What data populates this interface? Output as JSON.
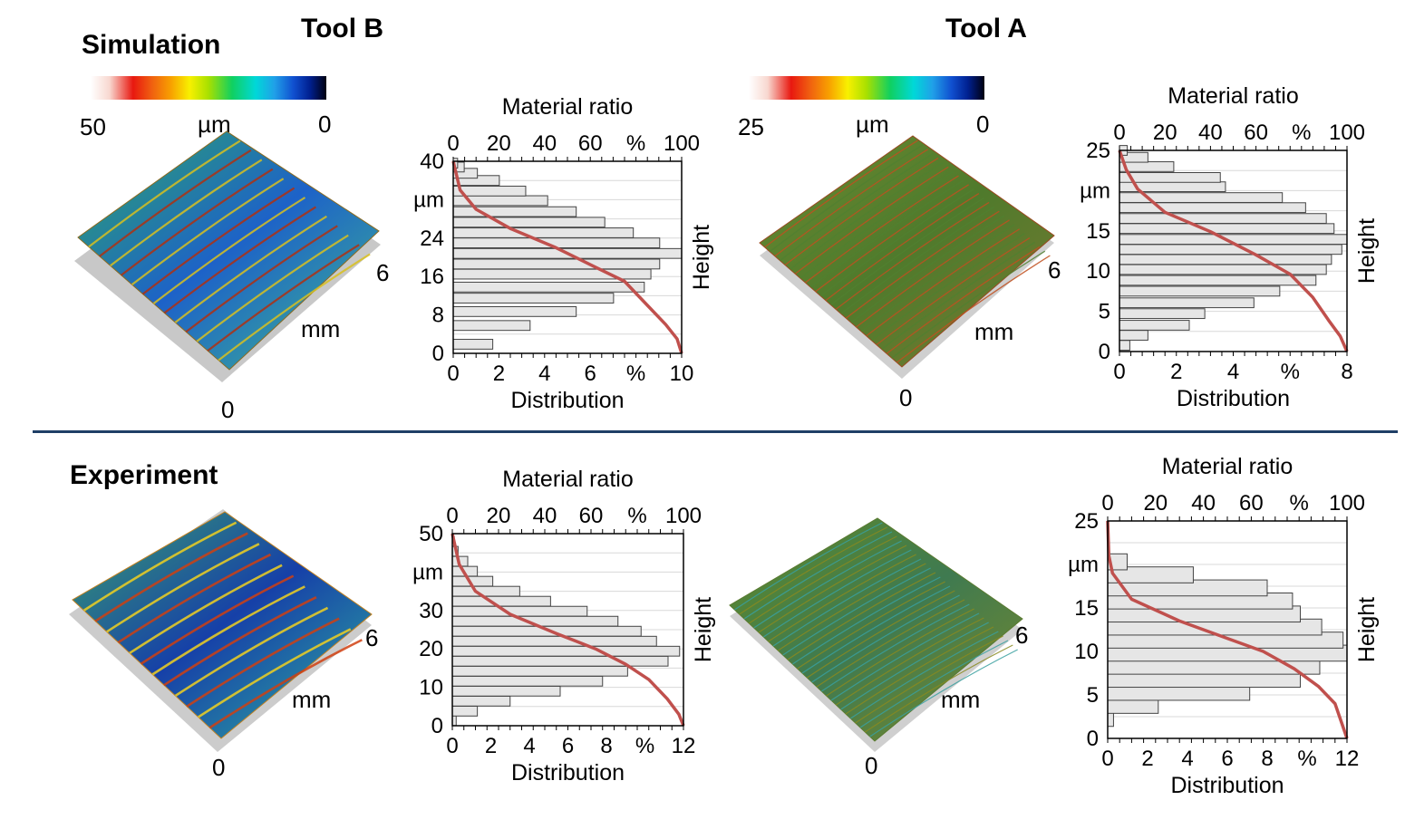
{
  "headers": {
    "tool_b": "Tool B",
    "tool_a": "Tool A",
    "simulation": "Simulation",
    "experiment": "Experiment"
  },
  "colorbars": [
    {
      "min_label": "50",
      "unit": "µm",
      "max_label": "0"
    },
    {
      "min_label": "25",
      "unit": "µm",
      "max_label": "0"
    }
  ],
  "surfaces": [
    {
      "x_end": "6",
      "unit": "mm",
      "origin": "0"
    },
    {
      "x_end": "6",
      "unit": "mm",
      "origin": "0"
    },
    {
      "x_end": "6",
      "unit": "mm",
      "origin": "0"
    },
    {
      "x_end": "6",
      "unit": "mm",
      "origin": "0"
    }
  ],
  "colors": {
    "curve": "#c0504d",
    "bar_fill": "#e6e6e6",
    "bar_stroke": "#444444",
    "separator": "#1f3f66"
  },
  "chart_data": [
    {
      "type": "bar",
      "panel": "simulation-tool-b",
      "top_axis_label": "Material ratio",
      "bottom_axis_label": "Distribution",
      "right_axis_label": "Height",
      "top_ticks": [
        "0",
        "20",
        "40",
        "60",
        "%",
        "100"
      ],
      "bottom_ticks": [
        "0",
        "2",
        "4",
        "6",
        "%",
        "10"
      ],
      "y_ticks": [
        "40",
        "µm",
        "24",
        "16",
        "8",
        "0"
      ],
      "y_range": [
        0,
        40
      ],
      "x_range": [
        0,
        10.4
      ],
      "bins": [
        {
          "y": 0.5,
          "value": 0.0
        },
        {
          "y": 1.9,
          "value": 1.8
        },
        {
          "y": 5.8,
          "value": 3.5
        },
        {
          "y": 8.7,
          "value": 5.6
        },
        {
          "y": 11.5,
          "value": 7.3
        },
        {
          "y": 13.8,
          "value": 8.7
        },
        {
          "y": 16.5,
          "value": 9.0
        },
        {
          "y": 18.6,
          "value": 9.4
        },
        {
          "y": 20.8,
          "value": 10.4
        },
        {
          "y": 23.0,
          "value": 9.4
        },
        {
          "y": 25.1,
          "value": 8.2
        },
        {
          "y": 27.3,
          "value": 6.9
        },
        {
          "y": 29.5,
          "value": 5.6
        },
        {
          "y": 31.8,
          "value": 4.3
        },
        {
          "y": 33.8,
          "value": 3.3
        },
        {
          "y": 36.0,
          "value": 2.1
        },
        {
          "y": 37.5,
          "value": 1.1
        },
        {
          "y": 38.8,
          "value": 0.5
        },
        {
          "y": 39.6,
          "value": 0.2
        }
      ],
      "material_ratio": [
        [
          0,
          40
        ],
        [
          3,
          34
        ],
        [
          10,
          30
        ],
        [
          25,
          26
        ],
        [
          45,
          22
        ],
        [
          62,
          18
        ],
        [
          75,
          15
        ],
        [
          85,
          10
        ],
        [
          93,
          6
        ],
        [
          98,
          3
        ],
        [
          100,
          0
        ]
      ]
    },
    {
      "type": "bar",
      "panel": "simulation-tool-a",
      "top_axis_label": "Material ratio",
      "bottom_axis_label": "Distribution",
      "right_axis_label": "Height",
      "top_ticks": [
        "0",
        "20",
        "40",
        "60",
        "%",
        "100"
      ],
      "bottom_ticks": [
        "0",
        "2",
        "4",
        "%",
        "8"
      ],
      "y_ticks": [
        "25",
        "µm",
        "15",
        "10",
        "5",
        "0"
      ],
      "y_range": [
        0,
        26
      ],
      "x_range": [
        0,
        8.8
      ],
      "bins": [
        {
          "y": 0.8,
          "value": 0.4
        },
        {
          "y": 2.1,
          "value": 1.1
        },
        {
          "y": 3.4,
          "value": 2.7
        },
        {
          "y": 4.9,
          "value": 3.3
        },
        {
          "y": 6.3,
          "value": 5.2
        },
        {
          "y": 7.8,
          "value": 6.2
        },
        {
          "y": 9.2,
          "value": 7.6
        },
        {
          "y": 10.6,
          "value": 8.0
        },
        {
          "y": 11.9,
          "value": 8.2
        },
        {
          "y": 13.2,
          "value": 8.6
        },
        {
          "y": 14.5,
          "value": 8.8
        },
        {
          "y": 15.9,
          "value": 8.3
        },
        {
          "y": 17.2,
          "value": 8.0
        },
        {
          "y": 18.6,
          "value": 7.2
        },
        {
          "y": 19.9,
          "value": 6.3
        },
        {
          "y": 21.3,
          "value": 4.1
        },
        {
          "y": 22.5,
          "value": 3.9
        },
        {
          "y": 23.9,
          "value": 2.1
        },
        {
          "y": 25.1,
          "value": 1.1
        },
        {
          "y": 26.0,
          "value": 0.3
        }
      ],
      "material_ratio": [
        [
          0,
          26
        ],
        [
          3,
          23.5
        ],
        [
          8,
          21
        ],
        [
          20,
          18
        ],
        [
          40,
          15.5
        ],
        [
          60,
          12.5
        ],
        [
          75,
          10
        ],
        [
          85,
          7
        ],
        [
          92,
          4
        ],
        [
          97,
          2
        ],
        [
          100,
          0
        ]
      ]
    },
    {
      "type": "bar",
      "panel": "experiment-tool-b",
      "top_axis_label": "Material ratio",
      "bottom_axis_label": "Distribution",
      "right_axis_label": "Height",
      "top_ticks": [
        "0",
        "20",
        "40",
        "60",
        "%",
        "100"
      ],
      "bottom_ticks": [
        "0",
        "2",
        "4",
        "6",
        "8",
        "%",
        "12"
      ],
      "y_ticks": [
        "50",
        "µm",
        "30",
        "20",
        "10",
        "0"
      ],
      "y_range": [
        0,
        50
      ],
      "x_range": [
        0,
        12
      ],
      "bins": [
        {
          "y": 1.3,
          "value": 0.2
        },
        {
          "y": 3.8,
          "value": 1.3
        },
        {
          "y": 6.4,
          "value": 3.0
        },
        {
          "y": 9.0,
          "value": 5.6
        },
        {
          "y": 11.6,
          "value": 7.8
        },
        {
          "y": 14.2,
          "value": 9.1
        },
        {
          "y": 16.8,
          "value": 11.2
        },
        {
          "y": 19.4,
          "value": 11.8
        },
        {
          "y": 22.0,
          "value": 10.6
        },
        {
          "y": 24.6,
          "value": 9.8
        },
        {
          "y": 27.2,
          "value": 8.6
        },
        {
          "y": 29.8,
          "value": 7.0
        },
        {
          "y": 32.4,
          "value": 5.1
        },
        {
          "y": 35.0,
          "value": 3.5
        },
        {
          "y": 37.6,
          "value": 2.1
        },
        {
          "y": 40.2,
          "value": 1.3
        },
        {
          "y": 42.8,
          "value": 0.8
        },
        {
          "y": 45.4,
          "value": 0.3
        },
        {
          "y": 48.0,
          "value": 0.1
        }
      ],
      "material_ratio": [
        [
          0,
          50
        ],
        [
          3,
          42
        ],
        [
          10,
          35
        ],
        [
          25,
          29
        ],
        [
          45,
          24
        ],
        [
          62,
          20
        ],
        [
          75,
          16
        ],
        [
          85,
          12
        ],
        [
          93,
          7
        ],
        [
          98,
          3
        ],
        [
          100,
          0
        ]
      ]
    },
    {
      "type": "bar",
      "panel": "experiment-tool-a",
      "top_axis_label": "Material ratio",
      "bottom_axis_label": "Distribution",
      "right_axis_label": "Height",
      "top_ticks": [
        "0",
        "20",
        "40",
        "60",
        "%",
        "100"
      ],
      "bottom_ticks": [
        "0",
        "2",
        "4",
        "6",
        "8",
        "%",
        "12"
      ],
      "y_ticks": [
        "25",
        "µm",
        "15",
        "10",
        "5",
        "0"
      ],
      "y_range": [
        0,
        25
      ],
      "x_range": [
        0,
        12.3
      ],
      "bins": [
        {
          "y": 2.3,
          "value": 0.3
        },
        {
          "y": 3.8,
          "value": 2.6
        },
        {
          "y": 5.3,
          "value": 7.3
        },
        {
          "y": 6.8,
          "value": 9.9
        },
        {
          "y": 8.3,
          "value": 10.9
        },
        {
          "y": 9.8,
          "value": 12.3
        },
        {
          "y": 11.3,
          "value": 12.1
        },
        {
          "y": 12.8,
          "value": 11.0
        },
        {
          "y": 14.3,
          "value": 9.9
        },
        {
          "y": 15.8,
          "value": 9.5
        },
        {
          "y": 17.3,
          "value": 8.2
        },
        {
          "y": 18.8,
          "value": 4.4
        },
        {
          "y": 20.3,
          "value": 1.0
        }
      ],
      "material_ratio": [
        [
          0,
          25
        ],
        [
          0.5,
          21
        ],
        [
          2,
          19
        ],
        [
          10,
          16
        ],
        [
          30,
          13.5
        ],
        [
          50,
          11.5
        ],
        [
          65,
          10
        ],
        [
          78,
          8
        ],
        [
          88,
          6
        ],
        [
          95,
          4
        ],
        [
          100,
          0
        ]
      ]
    }
  ]
}
